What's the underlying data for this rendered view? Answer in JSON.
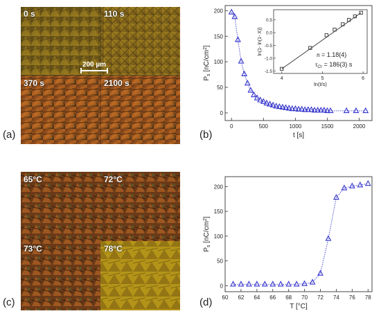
{
  "panel_letters": {
    "a": "(a)",
    "b": "(b)",
    "c": "(c)",
    "d": "(d)"
  },
  "micrographs_top": {
    "labels": [
      "0 s",
      "110 s",
      "370 s",
      "2100 s"
    ],
    "scalebar": "200 µm"
  },
  "micrographs_bottom": {
    "labels": [
      "65°C",
      "72°C",
      "73°C",
      "78°C"
    ]
  },
  "colors": {
    "marker": "#3333cc",
    "fit_line": "#333333",
    "inset_marker": "#333333",
    "micro_dark": "#3a2a10",
    "micro_gold": "#b89a20",
    "micro_orange": "#c86a20"
  },
  "chart_data": [
    {
      "type": "scatter",
      "xlabel": "t [s]",
      "ylabel": "P_s [nC/cm^2]",
      "ylabel_main": "P",
      "ylabel_sub": "s",
      "ylabel_unit": " [nC/cm",
      "ylabel_sup": "2",
      "ylabel_close": "]",
      "xlim": [
        -100,
        2200
      ],
      "ylim": [
        -15,
        210
      ],
      "xticks": [
        0,
        500,
        1000,
        1500,
        2000
      ],
      "yticks": [
        0,
        50,
        100,
        150,
        200
      ],
      "x": [
        0,
        50,
        100,
        150,
        200,
        250,
        300,
        350,
        400,
        450,
        500,
        550,
        600,
        650,
        700,
        750,
        800,
        850,
        900,
        950,
        1000,
        1050,
        1100,
        1150,
        1200,
        1250,
        1300,
        1350,
        1400,
        1450,
        1500,
        1550,
        1800,
        1950,
        2100
      ],
      "y": [
        197,
        188,
        143,
        101,
        76,
        58,
        44,
        35,
        29,
        25,
        22,
        19,
        17,
        15,
        13,
        12,
        11,
        10,
        9,
        8,
        8,
        7,
        7,
        6,
        6,
        6,
        5,
        5,
        5,
        5,
        4,
        4,
        4,
        4,
        4
      ],
      "inset": {
        "type": "scatter",
        "xlabel": "ln(t/s)",
        "ylabel": "ln(1- ln(1- X))",
        "xlim": [
          3.8,
          6.1
        ],
        "ylim": [
          -1.6,
          0.9
        ],
        "xticks": [
          4,
          5,
          6
        ],
        "yticks": [
          -1.5,
          -1.0,
          -0.5,
          0.0,
          0.5
        ],
        "ytick_labels": [
          "-1.5",
          "-1.0",
          "-0.5",
          "0.0",
          "0.5"
        ],
        "x": [
          4.0,
          4.7,
          5.1,
          5.3,
          5.5,
          5.65,
          5.8,
          5.95
        ],
        "y": [
          -1.42,
          -0.6,
          -0.1,
          0.12,
          0.33,
          0.5,
          0.64,
          0.78
        ],
        "fit": {
          "x": [
            4.0,
            5.95
          ],
          "y": [
            -1.42,
            0.78
          ]
        },
        "annotation_n": "n = 1.18(4)",
        "annotation_tau": "τCr = 186(3) s",
        "tau_main": "τ",
        "tau_sub": "Cr",
        "tau_rest": " = 186(3) s",
        "n_main": "n",
        "n_rest": " = 1.18(4)"
      }
    },
    {
      "type": "scatter",
      "xlabel": "T [°C]",
      "ylabel_main": "P",
      "ylabel_sub": "s",
      "ylabel_unit": " [nC/cm",
      "ylabel_sup": "2",
      "ylabel_close": "]",
      "xlim": [
        60,
        78.5
      ],
      "ylim": [
        -12,
        220
      ],
      "xticks": [
        60,
        62,
        64,
        66,
        68,
        70,
        72,
        74,
        76,
        78
      ],
      "yticks": [
        0,
        50,
        100,
        150,
        200
      ],
      "x": [
        61,
        62,
        63,
        64,
        65,
        66,
        67,
        68,
        69,
        70,
        71,
        72,
        73,
        74,
        75,
        76,
        77,
        78
      ],
      "y": [
        3,
        3,
        3,
        3,
        3,
        3,
        3,
        3,
        3,
        4,
        7,
        25,
        95,
        178,
        197,
        201,
        203,
        206
      ]
    }
  ]
}
